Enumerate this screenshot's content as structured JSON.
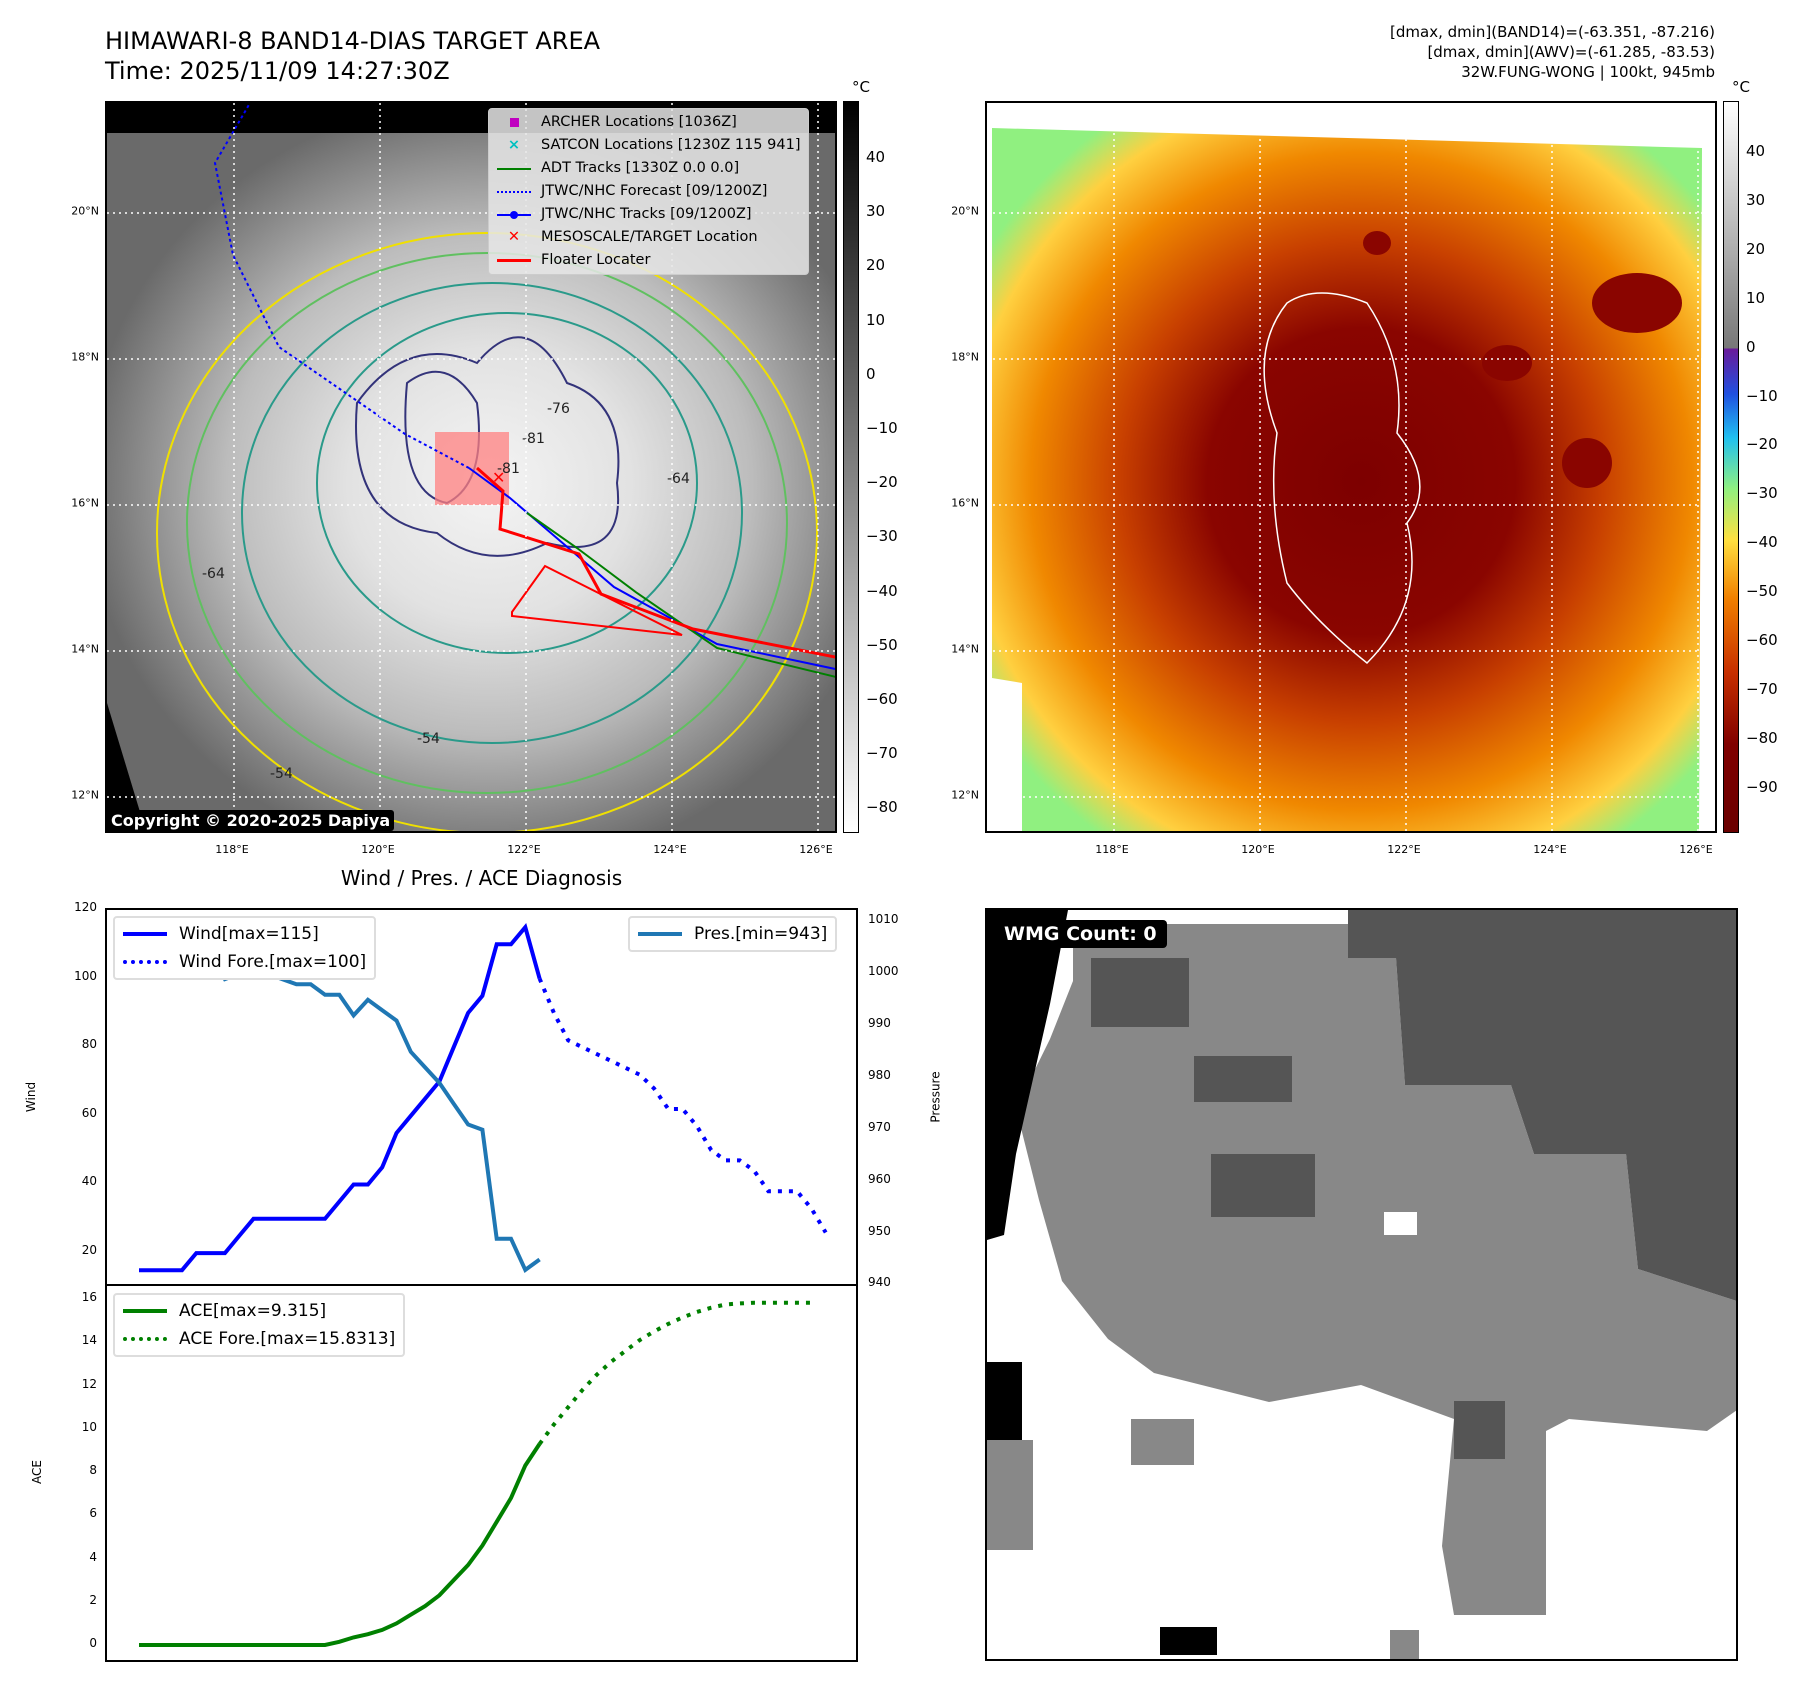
{
  "header": {
    "title": "HIMAWARI-8 BAND14-DIAS TARGET AREA",
    "time": "Time: 2025/11/09 14:27:30Z",
    "info_band14": "[dmax, dmin](BAND14)=(-63.351, -87.216)",
    "info_awv": "[dmax, dmin](AWV)=(-61.285, -83.53)",
    "storm": "32W.FUNG-WONG | 100kt, 945mb"
  },
  "map": {
    "lat_ticks": [
      "20°N",
      "18°N",
      "16°N",
      "14°N",
      "12°N"
    ],
    "lon_ticks": [
      "118°E",
      "120°E",
      "122°E",
      "124°E",
      "126°E"
    ],
    "unit": "°C",
    "left_colorbar_ticks": [
      "40",
      "30",
      "20",
      "10",
      "0",
      "−10",
      "−20",
      "−30",
      "−40",
      "−50",
      "−60",
      "−70",
      "−80"
    ],
    "right_colorbar_ticks": [
      "40",
      "30",
      "20",
      "10",
      "0",
      "−10",
      "−20",
      "−30",
      "−40",
      "−50",
      "−60",
      "−70",
      "−80",
      "−90"
    ],
    "copyright": "Copyright © 2020-2025 Dapiya",
    "legend": [
      {
        "label": "ARCHER Locations [1036Z]",
        "color": "#c000c0"
      },
      {
        "label": "SATCON Locations [1230Z 115 941]",
        "color": "#00c0c0"
      },
      {
        "label": "ADT Tracks [1330Z 0.0 0.0]",
        "color": "#008000"
      },
      {
        "label": "JTWC/NHC Forecast [09/1200Z]",
        "color": "#0000ff"
      },
      {
        "label": "JTWC/NHC Tracks [09/1200Z]",
        "color": "#0000ff"
      },
      {
        "label": "MESOSCALE/TARGET Location",
        "color": "#ff0000"
      },
      {
        "label": "Floater Locater",
        "color": "#ff0000"
      }
    ],
    "contour_labels": [
      "-64",
      "-64",
      "-54",
      "-54",
      "-81",
      "-81",
      "-76"
    ]
  },
  "wmg": {
    "label": "WMG Count: 0"
  },
  "chart_data": [
    {
      "type": "line",
      "title": "Wind / Pres. / ACE Diagnosis",
      "ylabel": "Wind",
      "ylabel_right": "Pressure",
      "xlim": [
        -2.24,
        50.4
      ],
      "ylim": [
        10.4,
        120
      ],
      "ylim_right": [
        939.9,
        1012.3
      ],
      "yticks": [
        20,
        40,
        60,
        80,
        100,
        120
      ],
      "yticks_right": [
        940,
        950,
        960,
        970,
        980,
        990,
        1000,
        1010
      ],
      "series": [
        {
          "name": "Wind[max=115]",
          "color": "#0000ff",
          "style": "solid",
          "axis": "left",
          "x0": 0,
          "values": [
            15,
            15,
            15,
            15,
            20,
            20,
            20,
            25,
            30,
            30,
            30,
            30,
            30,
            30,
            35,
            40,
            40,
            45,
            55,
            60,
            65,
            70,
            80,
            90,
            95,
            110,
            110,
            115,
            100
          ]
        },
        {
          "name": "Wind Fore.[max=100]",
          "color": "#0000ff",
          "style": "dotted",
          "axis": "left",
          "x0": 28,
          "values": [
            100,
            90,
            82,
            80,
            78,
            76,
            74,
            72,
            68,
            62,
            62,
            57,
            50,
            47,
            47,
            44,
            38,
            38,
            38,
            33,
            26
          ]
        },
        {
          "name": "Pres.[min=943]",
          "color": "#1f77b4",
          "style": "solid",
          "axis": "right",
          "x0": 0,
          "values": [
            1009,
            1006,
            1006,
            1006,
            1005,
            1004,
            999,
            1000,
            1000,
            1000,
            999,
            998,
            998,
            996,
            996,
            992,
            995,
            993,
            991,
            985,
            982,
            979,
            975,
            971,
            970,
            949,
            949,
            943,
            945
          ]
        }
      ]
    },
    {
      "type": "line",
      "ylabel": "ACE",
      "xlim": [
        -2.24,
        50.4
      ],
      "ylim": [
        -0.74,
        16.65
      ],
      "yticks": [
        0,
        2,
        4,
        6,
        8,
        10,
        12,
        14,
        16
      ],
      "series": [
        {
          "name": "ACE[max=9.315]",
          "color": "#008000",
          "style": "solid",
          "x0": 0,
          "values": [
            0,
            0,
            0,
            0,
            0,
            0,
            0,
            0,
            0,
            0,
            0,
            0,
            0,
            0,
            0.15,
            0.35,
            0.5,
            0.7,
            1.0,
            1.4,
            1.8,
            2.3,
            3.0,
            3.7,
            4.6,
            5.7,
            6.8,
            8.3,
            9.3
          ]
        },
        {
          "name": "ACE Fore.[max=15.8313]",
          "color": "#008000",
          "style": "dotted",
          "x0": 28,
          "values": [
            9.3,
            10.2,
            11.0,
            11.8,
            12.5,
            13.1,
            13.6,
            14.1,
            14.5,
            14.85,
            15.15,
            15.4,
            15.6,
            15.75,
            15.8,
            15.83,
            15.83,
            15.83,
            15.83,
            15.83
          ]
        }
      ]
    }
  ]
}
